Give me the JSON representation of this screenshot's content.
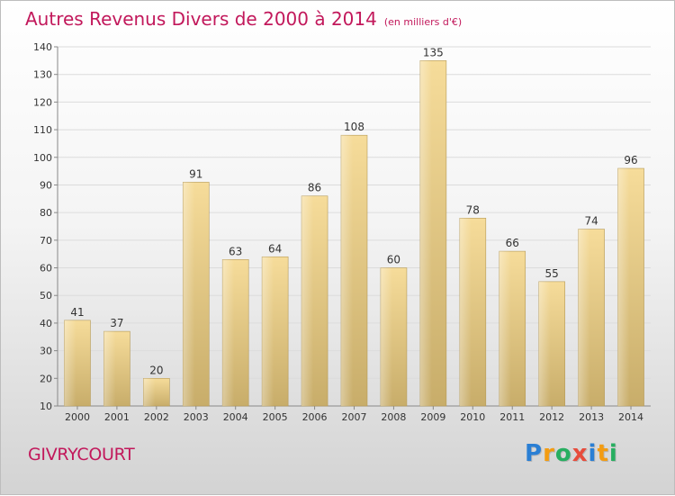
{
  "title": "Autres Revenus Divers de 2000 à 2014",
  "unit": "(en milliers d'€)",
  "commune": "GIVRYCOURT",
  "logo": {
    "text": "Proxiti",
    "letters": [
      {
        "ch": "P",
        "color": "#2a7fd4"
      },
      {
        "ch": "r",
        "color": "#f39c12"
      },
      {
        "ch": "o",
        "color": "#27ae60"
      },
      {
        "ch": "x",
        "color": "#e74c3c"
      },
      {
        "ch": "i",
        "color": "#2a7fd4"
      },
      {
        "ch": "t",
        "color": "#f39c12"
      },
      {
        "ch": "i",
        "color": "#27ae60"
      }
    ]
  },
  "chart_data": {
    "type": "bar",
    "title": "Autres Revenus Divers de 2000 à 2014",
    "categories": [
      "2000",
      "2001",
      "2002",
      "2003",
      "2004",
      "2005",
      "2006",
      "2007",
      "2008",
      "2009",
      "2010",
      "2011",
      "2012",
      "2013",
      "2014"
    ],
    "values": [
      41,
      37,
      20,
      91,
      63,
      64,
      86,
      108,
      60,
      135,
      78,
      66,
      55,
      74,
      96
    ],
    "ylim": [
      10,
      140
    ],
    "yticks": [
      10,
      20,
      30,
      40,
      50,
      60,
      70,
      80,
      90,
      100,
      110,
      120,
      130,
      140
    ],
    "grid": true,
    "bar_color_top": "#f6dc9a",
    "bar_color_bottom": "#c8ad6a",
    "title_color": "#c2185b"
  }
}
